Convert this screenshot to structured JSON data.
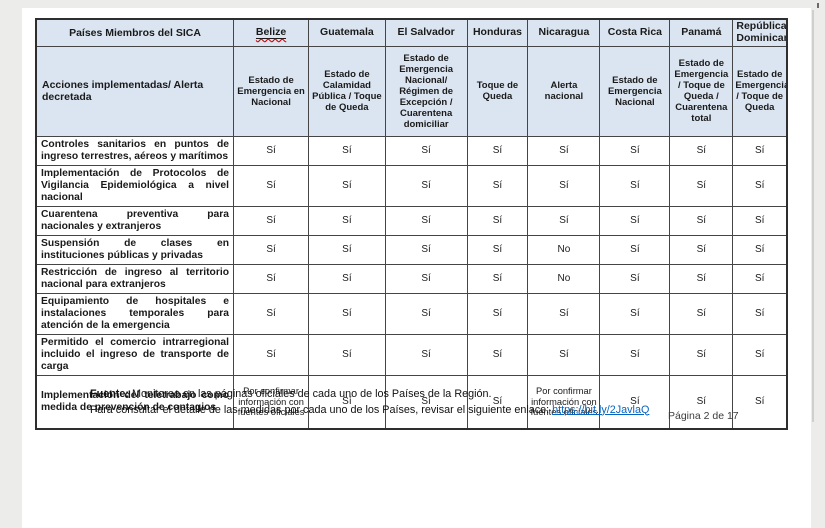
{
  "colors": {
    "canvas_bg": "#ecedeb",
    "page_bg": "#ffffff",
    "header_bg": "#dbe5f1",
    "border": "#454545",
    "link": "#0563c1",
    "spellcheck_squiggle": "#d40000"
  },
  "table": {
    "corner_header": "Países Miembros del SICA",
    "row_header_title": "Acciones implementadas/ Alerta decretada",
    "countries": [
      {
        "name": "Belize",
        "status": "Estado de Emergencia en Nacional",
        "spellcheck": true
      },
      {
        "name": "Guatemala",
        "status": "Estado de Calamidad Pública / Toque de Queda"
      },
      {
        "name": "El Salvador",
        "status": "Estado de Emergencia Nacional/ Régimen de Excepción / Cuarentena domiciliar"
      },
      {
        "name": "Honduras",
        "status": "Toque de Queda"
      },
      {
        "name": "Nicaragua",
        "status": "Alerta nacional"
      },
      {
        "name": "Costa Rica",
        "status": "Estado de Emergencia Nacional"
      },
      {
        "name": "Panamá",
        "status": "Estado de Emergencia / Toque de Queda / Cuarentena total"
      },
      {
        "name": "República Dominicana",
        "status": "Estado de Emergencia / Toque de Queda"
      }
    ],
    "col_widths_pct": [
      26.3,
      10.0,
      10.2,
      10.9,
      8.1,
      9.6,
      9.3,
      8.4,
      7.2
    ],
    "rows": [
      {
        "action": "Controles sanitarios en puntos de ingreso terrestres, aéreos y marítimos",
        "values": [
          "Sí",
          "Sí",
          "Sí",
          "Sí",
          "Sí",
          "Sí",
          "Sí",
          "Sí"
        ]
      },
      {
        "action": "Implementación de Protocolos de Vigilancia Epidemiológica a nivel nacional",
        "values": [
          "Sí",
          "Sí",
          "Sí",
          "Sí",
          "Sí",
          "Sí",
          "Sí",
          "Sí"
        ]
      },
      {
        "action": "Cuarentena preventiva para nacionales y extranjeros",
        "values": [
          "Sí",
          "Sí",
          "Sí",
          "Sí",
          "Sí",
          "Sí",
          "Sí",
          "Sí"
        ]
      },
      {
        "action": "Suspensión de clases en instituciones públicas y privadas",
        "values": [
          "Sí",
          "Sí",
          "Sí",
          "Sí",
          "No",
          "Sí",
          "Sí",
          "Sí"
        ]
      },
      {
        "action": "Restricción de ingreso al territorio nacional para extranjeros",
        "values": [
          "Sí",
          "Sí",
          "Sí",
          "Sí",
          "No",
          "Sí",
          "Sí",
          "Sí"
        ]
      },
      {
        "action": "Equipamiento de hospitales e instalaciones temporales para atención de la emergencia",
        "values": [
          "Sí",
          "Sí",
          "Sí",
          "Sí",
          "Sí",
          "Sí",
          "Sí",
          "Sí"
        ]
      },
      {
        "action": "Permitido el comercio intrarregional incluido el ingreso de transporte de carga",
        "values": [
          "Sí",
          "Sí",
          "Sí",
          "Sí",
          "Sí",
          "Sí",
          "Sí",
          "Sí"
        ]
      },
      {
        "action": "Implementación del teletrabajo como medida de prevención de contagios",
        "tall": true,
        "values": [
          "Por confirmar información con fuentes oficiales",
          "Sí",
          "Sí",
          "Sí",
          "Por confirmar información con fuentes oficiales",
          "Sí",
          "Sí",
          "Sí"
        ]
      }
    ]
  },
  "footer": {
    "source_label": "Fuente:",
    "source_text": " Monitoreo en las páginas oficiales de cada uno de los Países de la Región.",
    "link_prefix": "Para consultar el detalle de las medidas por cada uno de los Países, revisar el siguiente enlace: ",
    "link_text": "https://bit.ly/2JavlaQ",
    "page_number": "Página 2 de 17"
  }
}
